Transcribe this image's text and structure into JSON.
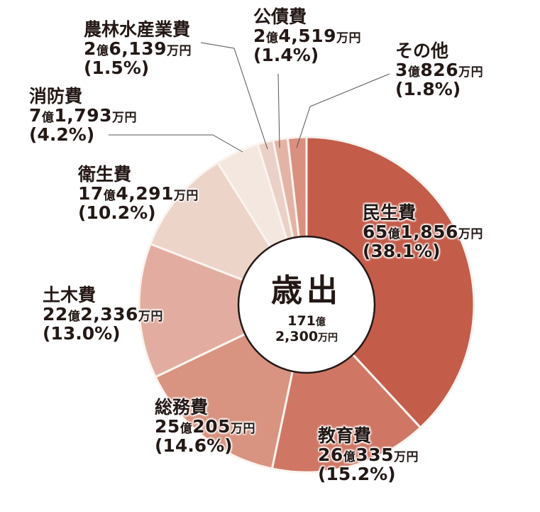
{
  "chart_data": {
    "type": "pie",
    "subtype": "donut",
    "title": "歳出",
    "total": {
      "oku": "171",
      "oku_unit": "億",
      "man": "2,300",
      "man_unit": "万円",
      "text": "171億2,300万円"
    },
    "start_angle": "12 o'clock, clockwise",
    "legend": "none (direct labels)",
    "slices": [
      {
        "name": "民生費",
        "oku": "65",
        "man": "1,856",
        "amount": "65億1,856万円",
        "percent": 38.1,
        "percent_label": "(38.1%)",
        "color": "#c45c4a"
      },
      {
        "name": "教育費",
        "oku": "26",
        "man": "335",
        "amount": "26億335万円",
        "percent": 15.2,
        "percent_label": "(15.2%)",
        "color": "#cf7764"
      },
      {
        "name": "総務費",
        "oku": "25",
        "man": "205",
        "amount": "25億205万円",
        "percent": 14.6,
        "percent_label": "(14.6%)",
        "color": "#d89381"
      },
      {
        "name": "土木費",
        "oku": "22",
        "man": "2,336",
        "amount": "22億2,336万円",
        "percent": 13.0,
        "percent_label": "(13.0%)",
        "color": "#e2ada0"
      },
      {
        "name": "衛生費",
        "oku": "17",
        "man": "4,291",
        "amount": "17億4,291万円",
        "percent": 10.2,
        "percent_label": "(10.2%)",
        "color": "#ecd4c9"
      },
      {
        "name": "消防費",
        "oku": "7",
        "man": "1,793",
        "amount": "7億1,793万円",
        "percent": 4.2,
        "percent_label": "(4.2%)",
        "color": "#f3e7df"
      },
      {
        "name": "農林水産業費",
        "oku": "2",
        "man": "6,139",
        "amount": "2億6,139万円",
        "percent": 1.5,
        "percent_label": "(1.5%)",
        "color": "#ead0c6"
      },
      {
        "name": "公債費",
        "oku": "2",
        "man": "4,519",
        "amount": "2億4,519万円",
        "percent": 1.4,
        "percent_label": "(1.4%)",
        "color": "#e3b3a5"
      },
      {
        "name": "その他",
        "oku": "3",
        "man": "826",
        "amount": "3億826万円",
        "percent": 1.8,
        "percent_label": "(1.8%)",
        "color": "#d9907e"
      }
    ],
    "units": {
      "oku": "億",
      "man": "万円"
    }
  },
  "center": {
    "title": "歳出",
    "total_oku": "171",
    "oku_unit": "億",
    "total_man": "2,300",
    "man_unit": "万円"
  }
}
